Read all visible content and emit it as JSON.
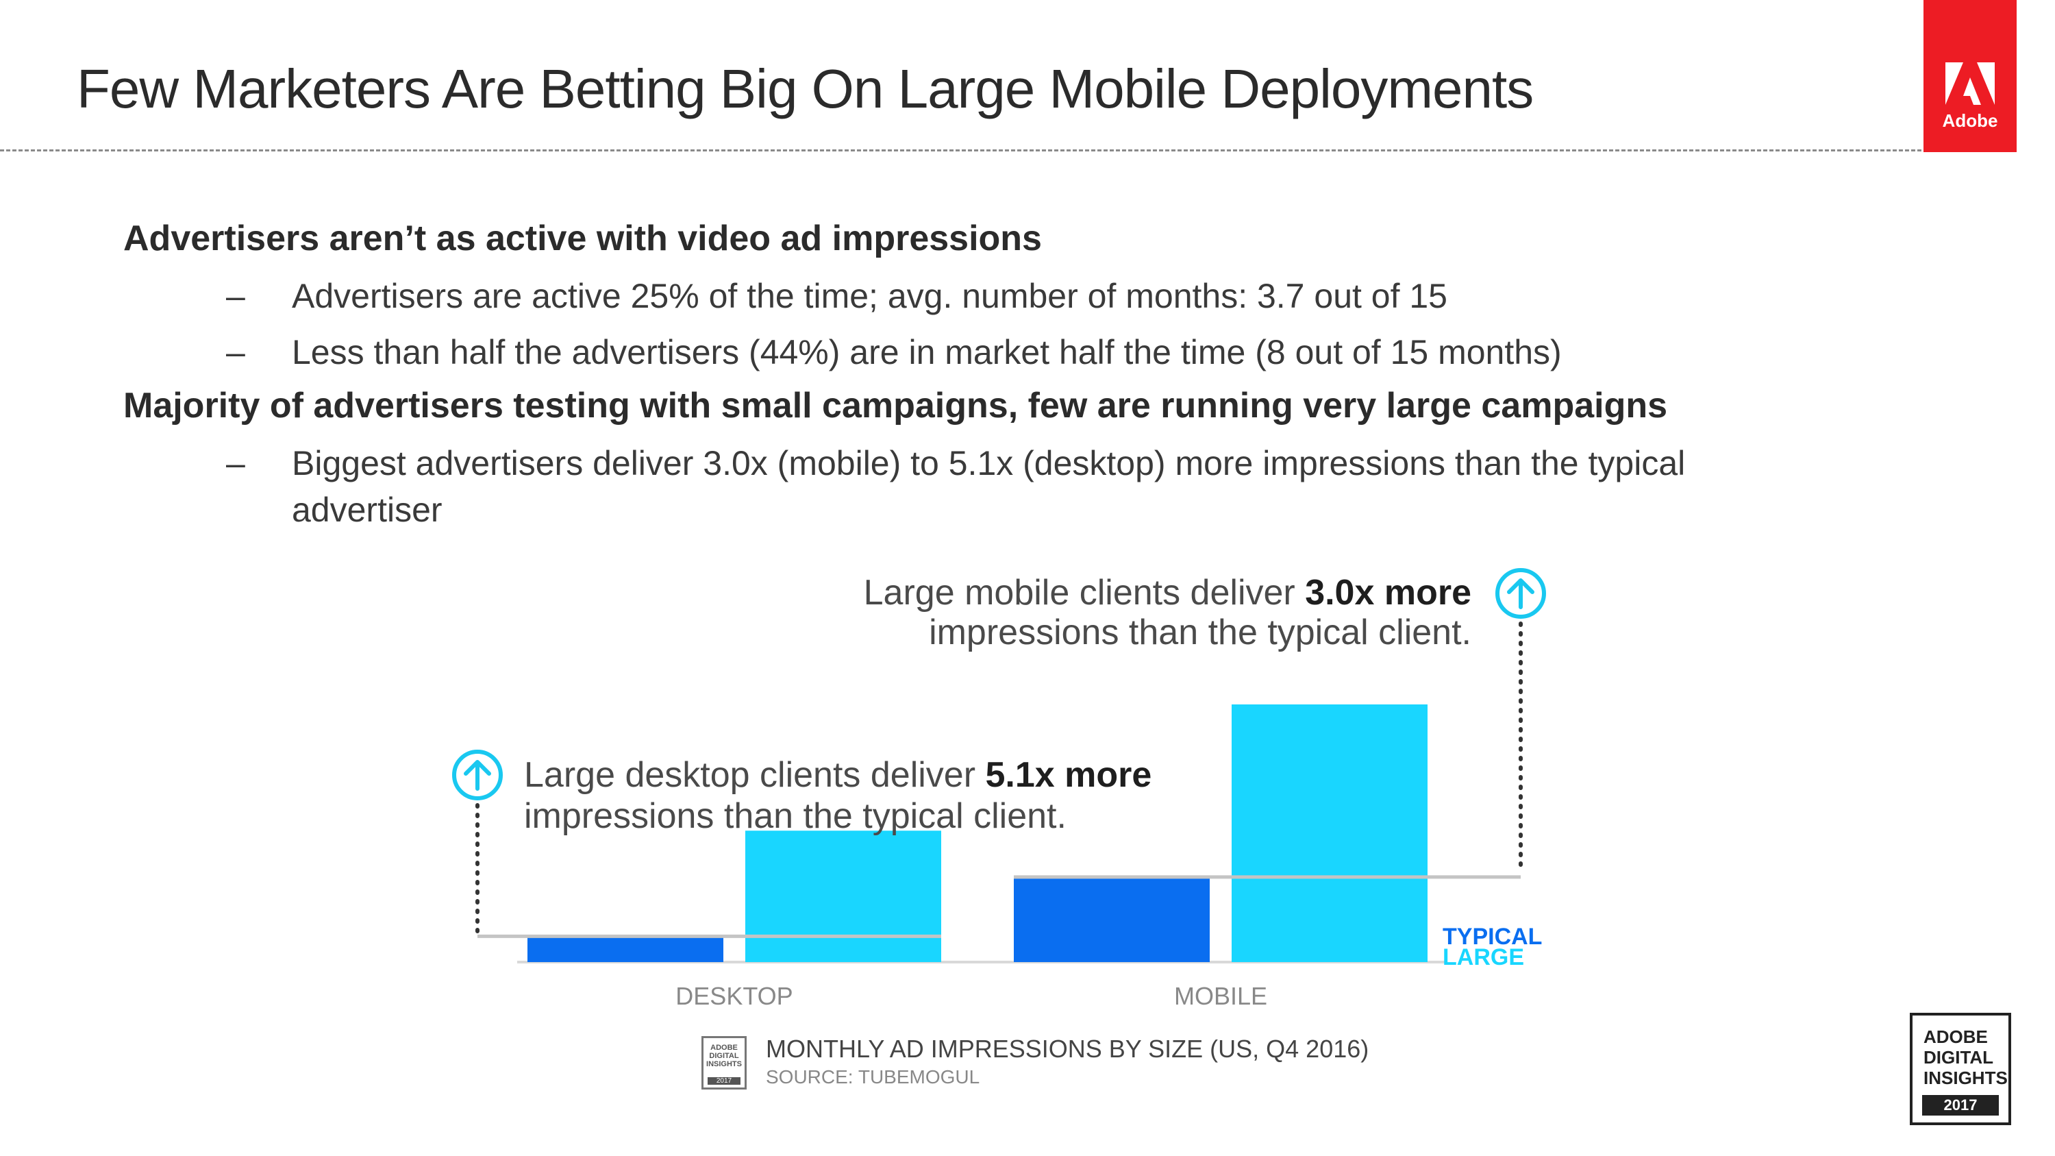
{
  "title": "Few Marketers Are Betting Big On Large Mobile Deployments",
  "logo": {
    "text": "Adobe",
    "color": "#ed1c24"
  },
  "bullets": [
    {
      "text": "Advertisers aren’t as active with video ad impressions",
      "sub": [
        "Advertisers are active 25% of the time; avg. number of months: 3.7 out of 15",
        "Less than half the advertisers (44%) are in market half the time (8 out of 15 months)"
      ]
    },
    {
      "text": "Majority of advertisers testing with small campaigns, few are running very large campaigns",
      "sub": [
        "Biggest advertisers deliver 3.0x (mobile) to 5.1x (desktop) more impressions than the typical advertiser"
      ]
    }
  ],
  "dash": "–",
  "chart_data": {
    "type": "bar",
    "categories": [
      "DESKTOP",
      "MOBILE"
    ],
    "series": [
      {
        "name": "TYPICAL",
        "color": "#0a6ef0",
        "values": [
          1.0,
          3.3
        ]
      },
      {
        "name": "LARGE",
        "color": "#19d6ff",
        "values": [
          5.1,
          10.0
        ]
      }
    ],
    "legend_position": "right",
    "annotations": [
      {
        "category": "DESKTOP",
        "text_before": "Large desktop clients deliver ",
        "bold": "5.1x more",
        "text_after": "impressions than the typical client."
      },
      {
        "category": "MOBILE",
        "text_before": "Large mobile clients deliver ",
        "bold": "3.0x more",
        "text_after": "impressions than the typical client."
      }
    ],
    "caption": "MONTHLY AD IMPRESSIONS BY SIZE  (US, Q4 2016)",
    "source": "SOURCE: TUBEMOGUL",
    "grid": false
  },
  "badges": {
    "small": {
      "lines": [
        "ADOBE",
        "DIGITAL",
        "INSIGHTS"
      ],
      "year": "2017"
    },
    "large": {
      "lines": [
        "ADOBE",
        "DIGITAL",
        "INSIGHTS"
      ],
      "year": "2017"
    }
  }
}
